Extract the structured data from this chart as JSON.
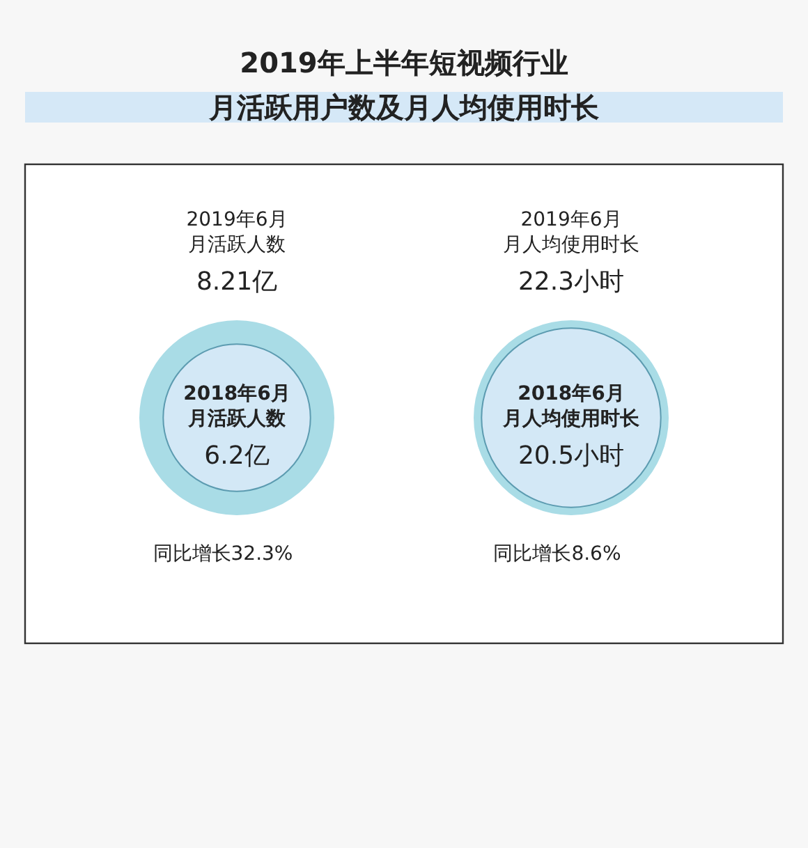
{
  "chart_data": [
    {
      "type": "other",
      "title": "2019年上半年短视频行业",
      "subtitle": "月活跃用户数及月人均使用时长",
      "categories": [
        "2019年6月月活跃人数",
        "2018年6月月活跃人数"
      ],
      "values": [
        8.21,
        6.2
      ],
      "value_labels": [
        "8.21亿",
        "6.2亿"
      ],
      "colors": [
        "#a9dce6",
        "#d3e8f6"
      ],
      "annotations": [
        "同比增长32.3%"
      ]
    },
    {
      "type": "other",
      "categories": [
        "2019年6月月人均使用时长",
        "2018年6月月人均使用时长"
      ],
      "values": [
        22.3,
        20.5
      ],
      "value_labels": [
        "22.3小时",
        "20.5小时"
      ],
      "colors": [
        "#a9dce6",
        "#d3e8f6"
      ],
      "annotations": [
        "同比增长8.6%"
      ]
    }
  ]
}
